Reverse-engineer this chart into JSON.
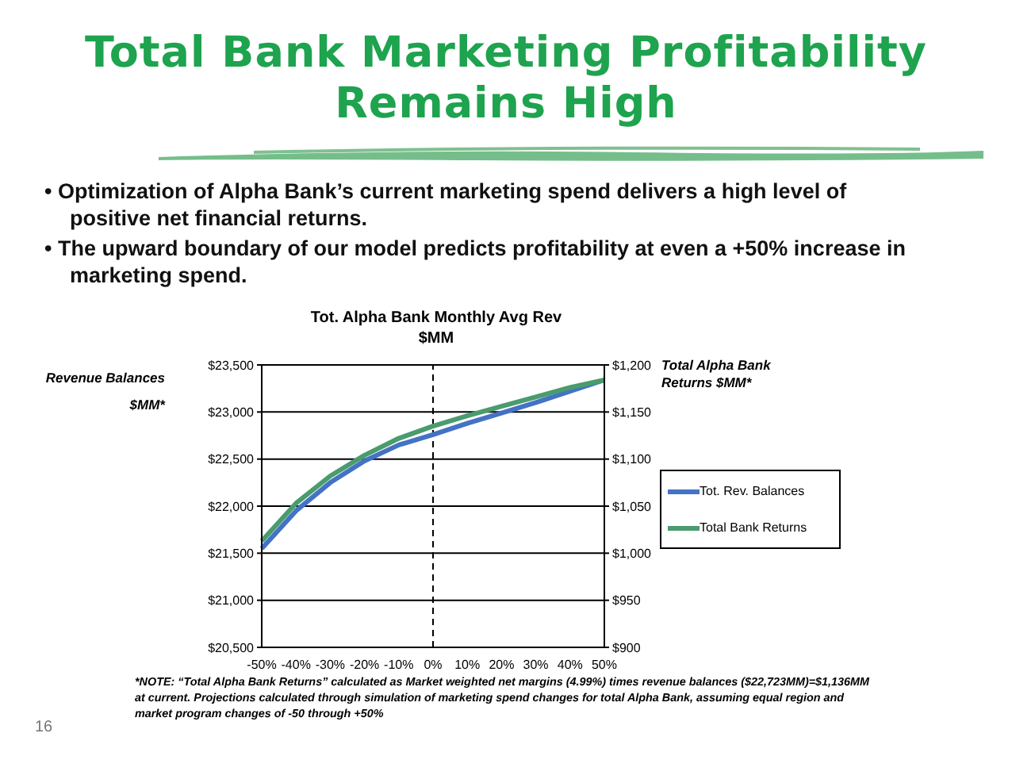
{
  "chart_data": {
    "type": "line",
    "title": "Total Bank Marketing Profitability Remains High",
    "subtitle": "Tot. Alpha Bank Monthly Avg Rev $MM",
    "ylabel": "Revenue Balances $MM*",
    "y2label": "Total Alpha Bank Returns $MM*",
    "annotations": [
      "• Optimization of Alpha Bank’s current marketing spend delivers a high level of positive net financial returns.",
      "• The upward boundary of our model predicts profitability at even a +50% increase in marketing spend.",
      "*NOTE: “Total Alpha Bank Returns” calculated as Market weighted net margins (4.99%) times revenue balances ($22,723MM)=$1,136MM at current.  Projections calculated through simulation of marketing spend changes for total Alpha Bank, assuming equal region and market program changes of -50 through +50%",
      "16"
    ],
    "categories": [
      "-50%",
      "-40%",
      "-30%",
      "-20%",
      "-10%",
      "0%",
      "10%",
      "20%",
      "30%",
      "40%",
      "50%"
    ],
    "series": [
      {
        "name": "Tot. Rev. Balances",
        "color": "#4472c4",
        "values": [
          21550,
          21950,
          22250,
          22480,
          22650,
          22760,
          22880,
          22990,
          23100,
          23220,
          23340
        ]
      },
      {
        "name": "Total Bank Returns",
        "color": "#4a9b6e",
        "axis": "y2",
        "values": [
          1013,
          1053,
          1082,
          1104,
          1122,
          1135,
          1146,
          1156,
          1166,
          1176,
          1184
        ]
      }
    ],
    "ylim": [
      20500,
      23500
    ],
    "yticks": [
      {
        "value": 20500,
        "label": "$20,500"
      },
      {
        "value": 21000,
        "label": "$21,000"
      },
      {
        "value": 21500,
        "label": "$21,500"
      },
      {
        "value": 22000,
        "label": "$22,000"
      },
      {
        "value": 22500,
        "label": "$22,500"
      },
      {
        "value": 23000,
        "label": "$23,000"
      },
      {
        "value": 23500,
        "label": "$23,500"
      }
    ],
    "y2lim": [
      900,
      1200
    ],
    "y2ticks": [
      {
        "value": 900,
        "label": "$900"
      },
      {
        "value": 950,
        "label": "$950"
      },
      {
        "value": 1000,
        "label": "$1,000"
      },
      {
        "value": 1050,
        "label": "$1,050"
      },
      {
        "value": 1100,
        "label": "$1,100"
      },
      {
        "value": 1150,
        "label": "$1,150"
      },
      {
        "value": 1200,
        "label": "$1,200"
      }
    ],
    "ref_lines": [
      {
        "axis": "x",
        "value": "0%",
        "color": "#000000",
        "line_style": "dashed"
      }
    ],
    "grid": "y",
    "legend": "right",
    "marker": "none",
    "line_style": "solid"
  }
}
